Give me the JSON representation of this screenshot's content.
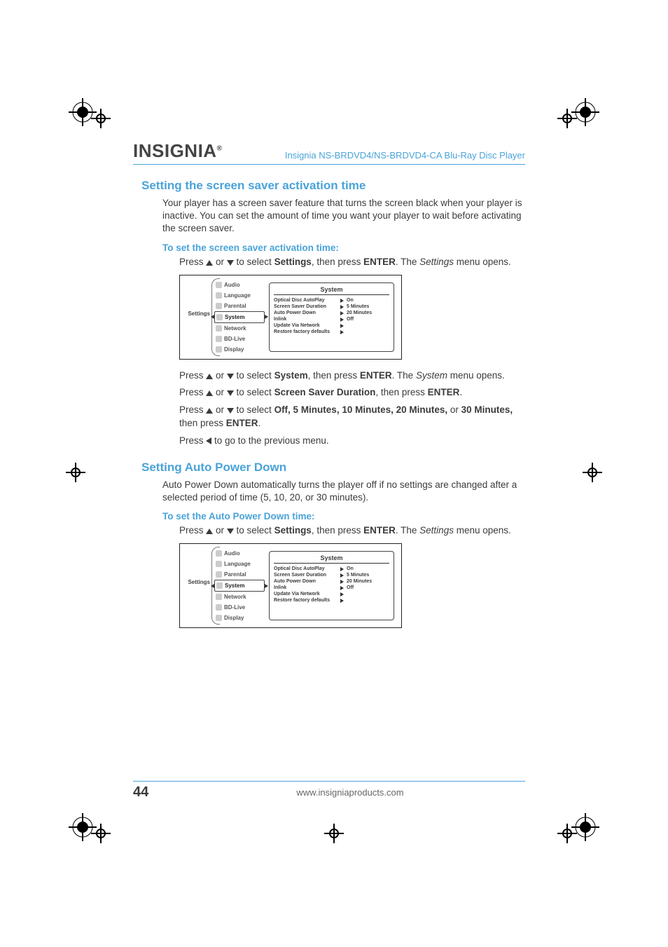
{
  "header": {
    "brand": "INSIGNIA",
    "product": "Insignia NS-BRDVD4/NS-BRDVD4-CA Blu-Ray Disc Player"
  },
  "section1": {
    "title": "Setting the screen saver activation time",
    "intro": "Your player has a screen saver feature that turns the screen black when your player is inactive. You can set the amount of time you want your player to wait before activating the screen saver.",
    "proc_label": "To set the screen saver activation time:",
    "step1_a": "Press ",
    "step1_b": " or ",
    "step1_c": " to select ",
    "step1_settings": "Settings",
    "step1_d": ", then press ",
    "step1_enter": "ENTER",
    "step1_e": ". The ",
    "step1_settings_i": "Settings",
    "step1_f": " menu opens.",
    "step2_a": "Press ",
    "step2_b": " or ",
    "step2_c": " to select ",
    "step2_system": "System",
    "step2_d": ", then press ",
    "step2_enter": "ENTER",
    "step2_e": ". The ",
    "step2_system_i": "System",
    "step2_f": " menu opens.",
    "step3_a": "Press ",
    "step3_b": " or ",
    "step3_c": " to select ",
    "step3_ssd": "Screen Saver Duration",
    "step3_d": ", then press ",
    "step3_enter": "ENTER",
    "step3_e": ".",
    "step4_a": "Press ",
    "step4_b": " or ",
    "step4_c": " to select ",
    "step4_opts": "Off, 5 Minutes, 10 Minutes, 20 Minutes,",
    "step4_d": " or ",
    "step4_opt30": "30 Minutes,",
    "step4_e": " then press ",
    "step4_enter": "ENTER",
    "step4_f": ".",
    "step5_a": "Press ",
    "step5_b": " to go to the previous menu."
  },
  "section2": {
    "title": "Setting Auto Power Down",
    "intro": "Auto Power Down automatically turns the player off if no settings are changed after a selected period of time (5, 10, 20, or 30 minutes).",
    "proc_label": "To set the Auto Power Down time:",
    "step1_a": "Press ",
    "step1_b": " or ",
    "step1_c": " to select ",
    "step1_settings": "Settings",
    "step1_d": ", then press ",
    "step1_enter": "ENTER",
    "step1_e": ". The ",
    "step1_settings_i": "Settings",
    "step1_f": " menu opens."
  },
  "menu": {
    "sidebar_label": "Settings",
    "items": [
      "Audio",
      "Language",
      "Parental",
      "System",
      "Network",
      "BD-Live",
      "Display"
    ],
    "selected_index": 3,
    "panel_title": "System",
    "rows": [
      {
        "k": "Optical Disc AutoPlay",
        "v": "On"
      },
      {
        "k": "Screen Saver Duration",
        "v": "5 Minutes"
      },
      {
        "k": "Auto Power Down",
        "v": "20 Minutes"
      },
      {
        "k": "Inlink",
        "v": "Off"
      },
      {
        "k": "Update Via Network",
        "v": ""
      },
      {
        "k": "Restore factory defaults",
        "v": ""
      }
    ]
  },
  "footer": {
    "page": "44",
    "url": "www.insigniaproducts.com"
  },
  "colors": {
    "accent": "#4aa3d9",
    "text": "#3b3b3b"
  }
}
